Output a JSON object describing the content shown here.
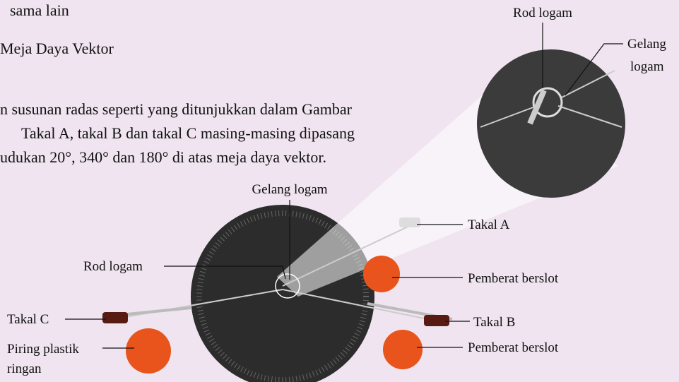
{
  "text": {
    "lines": [
      "sama lain",
      "Meja Daya Vektor",
      "n susunan radas seperti yang ditunjukkan dalam Gambar",
      "Takal A, takal B dan takal C masing-masing dipasang",
      "udukan 20°, 340° dan 180° di atas meja daya vektor."
    ]
  },
  "labels": {
    "inset_rod": "Rod logam",
    "inset_ring": [
      "Gelang",
      "logam"
    ],
    "ring": "Gelang logam",
    "pulley_a": "Takal A",
    "rod": "Rod logam",
    "weight_a": "Pemberat berslot",
    "pulley_c": "Takal C",
    "pulley_b": "Takal B",
    "plate": [
      "Piring plastik",
      "ringan"
    ],
    "weight_b": "Pemberat berslot"
  }
}
